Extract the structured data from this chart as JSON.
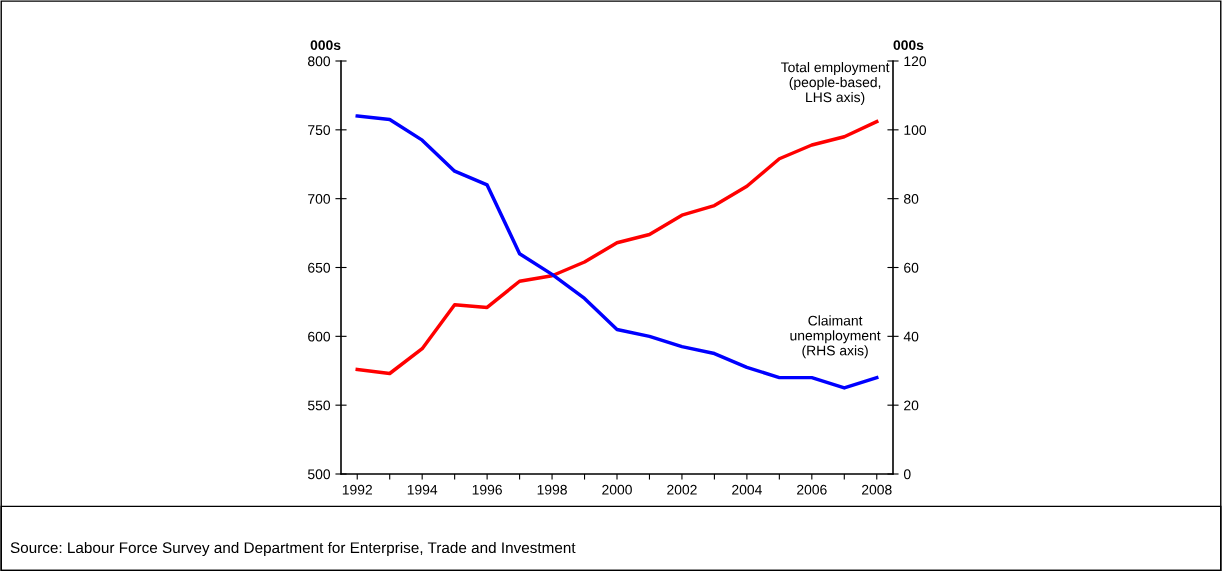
{
  "chart_data": {
    "type": "line",
    "ylabel": "000s",
    "y2label": "000s",
    "categories": [
      "1992",
      null,
      "1994",
      null,
      "1996",
      null,
      "1998",
      null,
      "2000",
      null,
      "2002",
      null,
      "2004",
      null,
      "2006",
      null,
      "2008"
    ],
    "series": [
      {
        "name": "Total employment\n(people-based,\nLHS axis)",
        "color": "#ff0000",
        "values": [
          576,
          573,
          591,
          623,
          621,
          640,
          644,
          654,
          668,
          674,
          688,
          695,
          709,
          729,
          739,
          745,
          756
        ]
      },
      {
        "name": "Claimant\nunemployment\n(RHS axis)",
        "color": "#0000ff",
        "axis": "y2",
        "values": [
          104,
          103,
          97,
          88,
          84,
          64,
          58,
          51,
          42,
          40,
          37,
          35,
          31,
          28,
          28,
          25,
          28
        ]
      }
    ],
    "ylim": [
      500,
      800
    ],
    "yticks": [
      500,
      550,
      600,
      650,
      700,
      750,
      800
    ],
    "y2lim": [
      0,
      120
    ],
    "y2ticks": [
      0,
      20,
      40,
      60,
      80,
      100,
      120
    ],
    "legend": false,
    "grid": false,
    "annotations": [
      "Source: Labour Force Survey and Department for Enterprise, Trade and Investment"
    ]
  }
}
